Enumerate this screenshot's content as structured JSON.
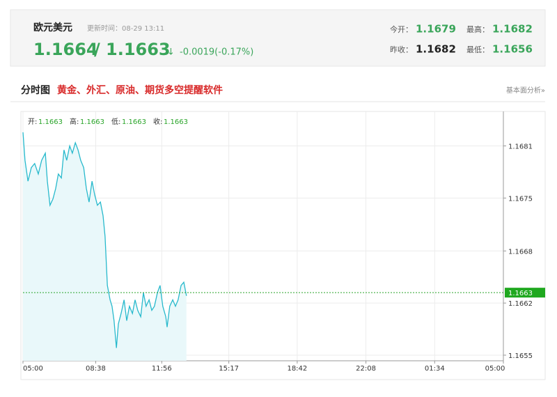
{
  "header": {
    "title": "欧元美元",
    "update_time": "更新时间：08-29 13:11",
    "bid": 1.1664,
    "separator": "/",
    "ask": 1.1663,
    "arrow": "↓",
    "change": "-0.0019(-0.17%)",
    "stats": [
      {
        "label": "今开：",
        "value": 1.1679
      },
      {
        "label": "最高：",
        "value": 1.1682
      },
      {
        "label": "昨收：",
        "value": 1.1682
      },
      {
        "label": "最低：",
        "value": 1.1656
      }
    ]
  },
  "tabs": {
    "active": "分时图",
    "promo": "黄金、外汇、原油、期货多空提醒软件",
    "link": "基本面分析»"
  },
  "chart_data": {
    "type": "line",
    "ohlc": [
      {
        "label": "开:",
        "value": 1.1663
      },
      {
        "label": "高:",
        "value": 1.1663
      },
      {
        "label": "低:",
        "value": 1.1663
      },
      {
        "label": "收:",
        "value": 1.1663
      }
    ],
    "last_price": 1.1663,
    "xlim": [
      0,
      1440
    ],
    "xticks": [
      {
        "value": 0,
        "label": "05:00"
      },
      {
        "value": 218,
        "label": "08:38"
      },
      {
        "value": 416,
        "label": "11:56"
      },
      {
        "value": 617,
        "label": "15:17"
      },
      {
        "value": 822,
        "label": "18:42"
      },
      {
        "value": 1028,
        "label": "22:08"
      },
      {
        "value": 1234,
        "label": "01:34"
      },
      {
        "value": 1440,
        "label": "05:00"
      }
    ],
    "ylim": [
      1.16545,
      1.16856
    ],
    "yticks": [
      {
        "value": 1.16813,
        "label": "1.1681"
      },
      {
        "value": 1.16748,
        "label": "1.1675"
      },
      {
        "value": 1.16682,
        "label": "1.1668"
      },
      {
        "value": 1.16617,
        "label": "1.1662"
      },
      {
        "value": 1.16552,
        "label": "1.1655"
      }
    ],
    "grid": true,
    "series": [
      {
        "color": "#27b9cc",
        "x": [
          0,
          6,
          15,
          25,
          35,
          46,
          56,
          67,
          73,
          81,
          90,
          98,
          106,
          115,
          123,
          131,
          140,
          148,
          157,
          165,
          173,
          182,
          190,
          198,
          207,
          215,
          223,
          232,
          240,
          246,
          253,
          261,
          267,
          273,
          280,
          286,
          294,
          303,
          311,
          319,
          328,
          336,
          344,
          353,
          361,
          369,
          378,
          386,
          394,
          403,
          411,
          419,
          428,
          432,
          440,
          449,
          457,
          465,
          474,
          482,
          490
        ],
        "values": [
          1.1683,
          1.16795,
          1.16769,
          1.16786,
          1.16791,
          1.16778,
          1.16795,
          1.16804,
          1.16769,
          1.16739,
          1.16747,
          1.1676,
          1.16778,
          1.16773,
          1.16808,
          1.16795,
          1.16813,
          1.16804,
          1.16817,
          1.16808,
          1.16795,
          1.16786,
          1.1676,
          1.16743,
          1.16769,
          1.16752,
          1.16739,
          1.16743,
          1.16726,
          1.167,
          1.16639,
          1.16621,
          1.16613,
          1.16595,
          1.16561,
          1.16591,
          1.16604,
          1.16621,
          1.16595,
          1.16613,
          1.16604,
          1.16621,
          1.16608,
          1.166,
          1.1663,
          1.16613,
          1.16621,
          1.16608,
          1.16613,
          1.1663,
          1.16639,
          1.16613,
          1.166,
          1.16587,
          1.16613,
          1.16621,
          1.16613,
          1.16621,
          1.16639,
          1.16643,
          1.16626
        ]
      }
    ]
  }
}
